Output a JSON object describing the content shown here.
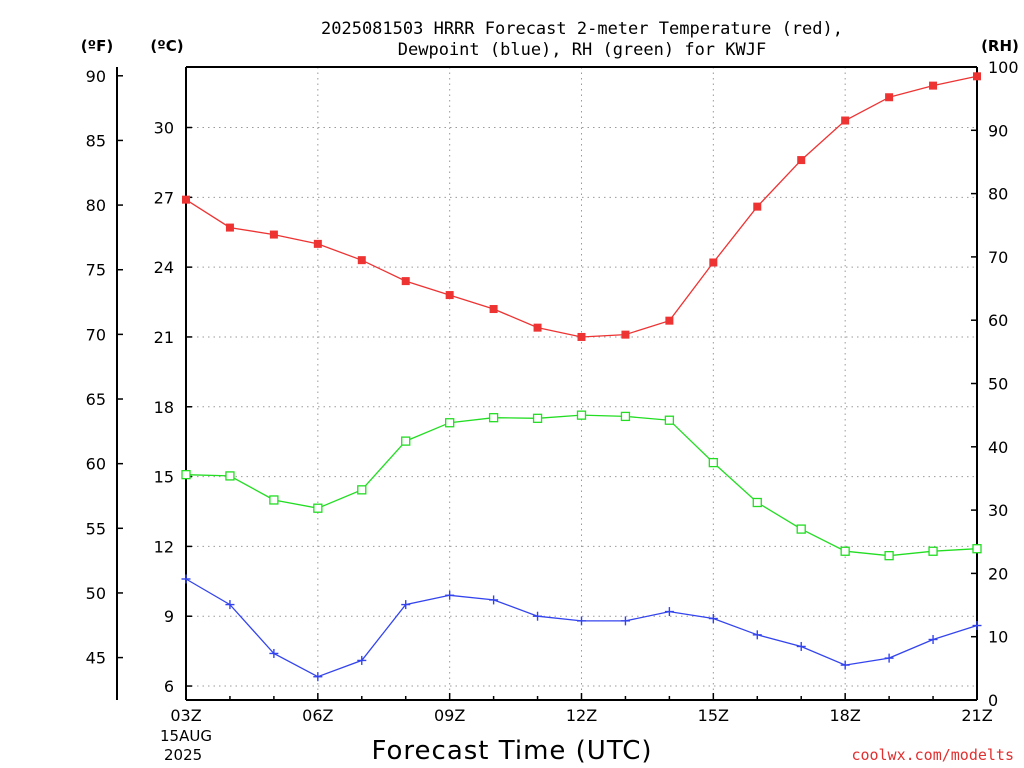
{
  "chart_data": {
    "type": "line",
    "title_line1": "2025081503 HRRR Forecast 2-meter Temperature (red),",
    "title_line2": "Dewpoint (blue), RH (green) for KWJF",
    "unit_f": "(ºF)",
    "unit_c": "(ºC)",
    "unit_rh": "(RH)",
    "xlabel": "Forecast Time (UTC)",
    "date_label": [
      "15AUG",
      "2025"
    ],
    "credit": "coolwx.com/modelts",
    "x_ticks": [
      "03Z",
      "06Z",
      "09Z",
      "12Z",
      "15Z",
      "18Z",
      "21Z"
    ],
    "x": [
      3,
      4,
      5,
      6,
      7,
      8,
      9,
      10,
      11,
      12,
      13,
      14,
      15,
      16,
      17,
      18,
      19,
      20,
      21
    ],
    "x_range": [
      3,
      21
    ],
    "ylim_c": [
      5.4,
      32.6
    ],
    "ylim_rh": [
      0,
      100
    ],
    "yticks_c": [
      6,
      9,
      12,
      15,
      18,
      21,
      24,
      27,
      30
    ],
    "yticks_f": [
      45,
      50,
      55,
      60,
      65,
      70,
      75,
      80,
      85,
      90
    ],
    "yticks_rh": [
      0,
      10,
      20,
      30,
      40,
      50,
      60,
      70,
      80,
      90,
      100
    ],
    "grid": true,
    "series": [
      {
        "name": "Temperature",
        "axis": "c",
        "color": "#ee3333",
        "marker": "filled-square",
        "values": [
          26.9,
          25.7,
          25.4,
          25.0,
          24.3,
          23.4,
          22.8,
          22.2,
          21.4,
          21.0,
          21.1,
          21.7,
          24.2,
          26.6,
          28.6,
          30.3,
          31.3,
          31.8,
          32.2
        ]
      },
      {
        "name": "Dewpoint",
        "axis": "c",
        "color": "#3344ee",
        "marker": "plus",
        "values": [
          10.6,
          9.5,
          7.4,
          6.4,
          7.1,
          9.5,
          9.9,
          9.7,
          9.0,
          8.8,
          8.8,
          9.2,
          8.9,
          8.2,
          7.7,
          6.9,
          7.2,
          8.0,
          8.6
        ]
      },
      {
        "name": "RH",
        "axis": "rh",
        "color": "#22dd22",
        "marker": "open-square",
        "values": [
          35.6,
          35.4,
          31.6,
          30.3,
          33.2,
          40.9,
          43.8,
          44.6,
          44.5,
          45.0,
          44.8,
          44.2,
          37.5,
          31.2,
          27.0,
          23.5,
          22.8,
          23.5,
          23.9
        ]
      }
    ]
  }
}
